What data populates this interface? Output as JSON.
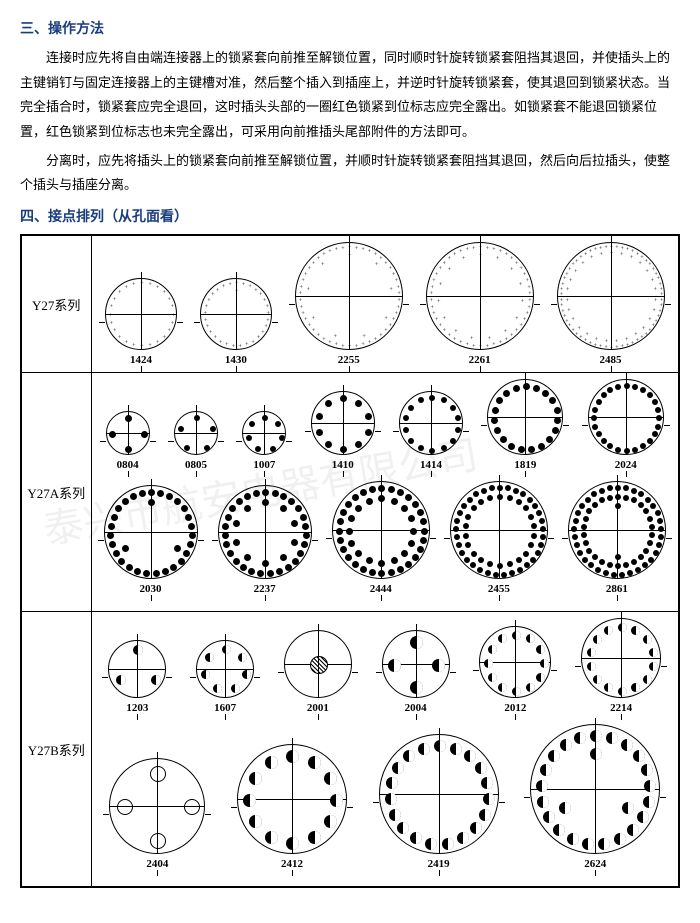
{
  "sections": {
    "s3": {
      "title": "三、操作方法"
    },
    "s4": {
      "title": "四、接点排列（从孔面看）"
    }
  },
  "paragraphs": {
    "p1": "连接时应先将自由端连接器上的锁紧套向前推至解锁位置，同时顺时针旋转锁紧套阻挡其退回，并使插头上的主键销钉与固定连接器上的主键槽对准，然后整个插入到插座上，并逆时针旋转锁紧套，使其退回到锁紧状态。当完全插合时，锁紧套应完全退回，这时插头头部的一圈红色锁紧到位标志应完全露出。如锁紧套不能退回锁紧位置，红色锁紧到位标志也未完全露出，可采用向前推插头尾部附件的方法即可。",
    "p2": "分离时，应先将插头上的锁紧套向前推至解锁位置，并顺时针旋转锁紧套阻挡其退回，然后向后拉插头，使整个插头与插座分离。"
  },
  "series": [
    {
      "name": "Y27系列",
      "pin_style": "plus",
      "rows": [
        [
          {
            "label": "1424",
            "dia": 72,
            "pins": 24,
            "pinsize": 5
          },
          {
            "label": "1430",
            "dia": 72,
            "pins": 30,
            "pinsize": 5
          },
          {
            "label": "2255",
            "dia": 108,
            "pins": 55,
            "pinsize": 5
          },
          {
            "label": "2261",
            "dia": 108,
            "pins": 61,
            "pinsize": 5
          },
          {
            "label": "2485",
            "dia": 108,
            "pins": 85,
            "pinsize": 4
          }
        ]
      ]
    },
    {
      "name": "Y27A系列",
      "pin_style": "dot",
      "rows": [
        [
          {
            "label": "0804",
            "dia": 44,
            "pins": 4,
            "pinsize": 7
          },
          {
            "label": "0805",
            "dia": 44,
            "pins": 5,
            "pinsize": 6
          },
          {
            "label": "1007",
            "dia": 44,
            "pins": 7,
            "pinsize": 6
          },
          {
            "label": "1410",
            "dia": 64,
            "pins": 10,
            "pinsize": 7
          },
          {
            "label": "1414",
            "dia": 64,
            "pins": 14,
            "pinsize": 6
          },
          {
            "label": "1819",
            "dia": 76,
            "pins": 19,
            "pinsize": 7
          },
          {
            "label": "2024",
            "dia": 76,
            "pins": 24,
            "pinsize": 6
          }
        ],
        [
          {
            "label": "2030",
            "dia": 94,
            "pins": 30,
            "pinsize": 7
          },
          {
            "label": "2237",
            "dia": 94,
            "pins": 37,
            "pinsize": 7
          },
          {
            "label": "2444",
            "dia": 98,
            "pins": 44,
            "pinsize": 7
          },
          {
            "label": "2455",
            "dia": 98,
            "pins": 55,
            "pinsize": 6
          },
          {
            "label": "2861",
            "dia": 98,
            "pins": 61,
            "pinsize": 6
          }
        ]
      ]
    },
    {
      "name": "Y27B系列",
      "pin_style": "half",
      "rows": [
        [
          {
            "label": "1203",
            "dia": 58,
            "pins": 3,
            "pinsize": 10
          },
          {
            "label": "1607",
            "dia": 58,
            "pins": 7,
            "pinsize": 9
          },
          {
            "label": "2001",
            "dia": 68,
            "pins": 1,
            "pinsize": 18,
            "style_override": "hatch"
          },
          {
            "label": "2004",
            "dia": 68,
            "pins": 4,
            "pinsize": 13
          },
          {
            "label": "2012",
            "dia": 72,
            "pins": 12,
            "pinsize": 9
          },
          {
            "label": "2214",
            "dia": 80,
            "pins": 14,
            "pinsize": 9
          }
        ],
        [
          {
            "label": "2404",
            "dia": 96,
            "pins": 4,
            "pinsize": 16,
            "style_override": "ring"
          },
          {
            "label": "2412",
            "dia": 110,
            "pins": 12,
            "pinsize": 13
          },
          {
            "label": "2419",
            "dia": 120,
            "pins": 19,
            "pinsize": 12
          },
          {
            "label": "2624",
            "dia": 130,
            "pins": 24,
            "pinsize": 12
          }
        ]
      ]
    }
  ],
  "colors": {
    "stroke": "#000000",
    "bg": "#ffffff",
    "title": "#1a3d7c"
  },
  "watermark": "泰兴市航安电器有限公司"
}
